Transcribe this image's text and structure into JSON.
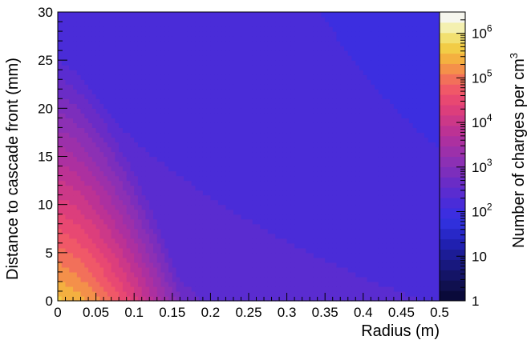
{
  "chart_data": {
    "type": "heatmap",
    "title": "",
    "xlabel": "Radius (m)",
    "ylabel": "Distance to cascade front (mm)",
    "colorbar_label_main": "Number of charges per cm",
    "colorbar_label_sup": "3",
    "xlim": [
      0,
      0.5
    ],
    "ylim": [
      0,
      30
    ],
    "x_ticks": [
      0,
      0.05,
      0.1,
      0.15,
      0.2,
      0.25,
      0.3,
      0.35,
      0.4,
      0.45,
      0.5
    ],
    "x_tick_labels": [
      "0",
      "0.05",
      "0.1",
      "0.15",
      "0.2",
      "0.25",
      "0.3",
      "0.35",
      "0.4",
      "0.45",
      "0.5"
    ],
    "y_ticks": [
      0,
      5,
      10,
      15,
      20,
      25,
      30
    ],
    "y_tick_labels": [
      "0",
      "5",
      "10",
      "15",
      "20",
      "25",
      "30"
    ],
    "z_scale": "log",
    "zlim": [
      1,
      3000000
    ],
    "z_ticks": [
      1,
      10,
      100,
      1000,
      10000,
      100000,
      1000000
    ],
    "z_tick_labels": [
      {
        "base": "1",
        "exp": ""
      },
      {
        "base": "10",
        "exp": ""
      },
      {
        "base": "10",
        "exp": "2"
      },
      {
        "base": "10",
        "exp": "3"
      },
      {
        "base": "10",
        "exp": "4"
      },
      {
        "base": "10",
        "exp": "5"
      },
      {
        "base": "10",
        "exp": "6"
      }
    ],
    "palette": [
      "#0a0a3a",
      "#10104f",
      "#141466",
      "#18187e",
      "#1c1c96",
      "#2020b0",
      "#2828c8",
      "#3030dc",
      "#3c2ee0",
      "#4a2cd8",
      "#5a2cd0",
      "#6a2cc6",
      "#7c2ebc",
      "#8c30b4",
      "#9c30aa",
      "#ac30a0",
      "#bc3294",
      "#cc3888",
      "#dc3e7c",
      "#e84872",
      "#f05868",
      "#f2705a",
      "#f4904a",
      "#f4b040",
      "#f2cc46",
      "#f2e070",
      "#f4f0b0",
      "#f6f6ee"
    ],
    "density_model": {
      "peak_log10": 5.6,
      "front_falloff_mm": 7.5,
      "radial_scale_m": 0.09,
      "tail_floor_log10": 2.2
    }
  }
}
